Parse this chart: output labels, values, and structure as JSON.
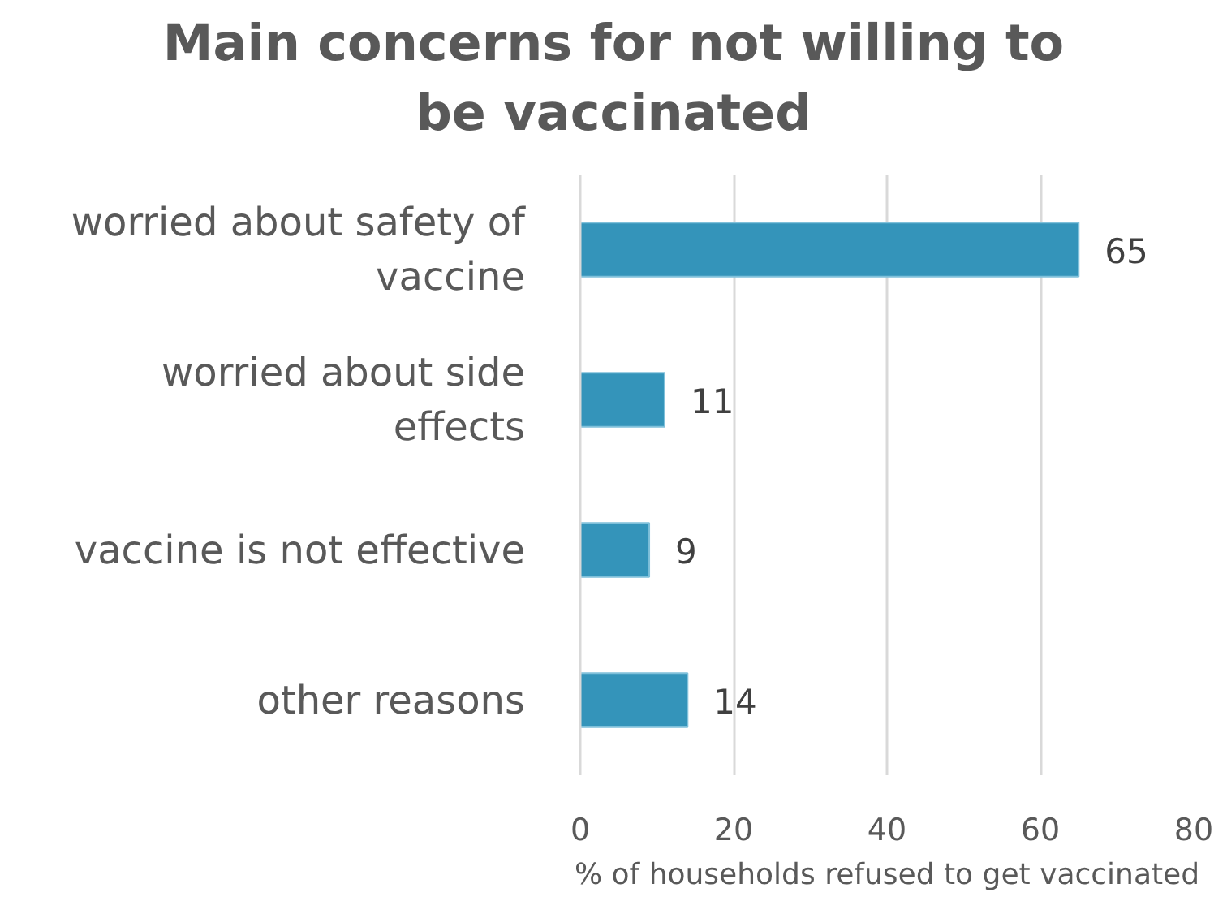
{
  "chart_data": {
    "type": "bar",
    "orientation": "horizontal",
    "title": "Main concerns for not willing to be vaccinated",
    "xlabel": "% of households refused to get vaccinated",
    "categories": [
      "worried about safety of vaccine",
      "worried about side effects",
      "vaccine is not effective",
      "other reasons"
    ],
    "values": [
      65,
      11,
      9,
      14
    ],
    "color": "#3494ba",
    "xlim": [
      0,
      80
    ],
    "xticks": [
      0,
      20,
      40,
      60,
      80
    ],
    "grid": "x",
    "data_labels": true
  }
}
